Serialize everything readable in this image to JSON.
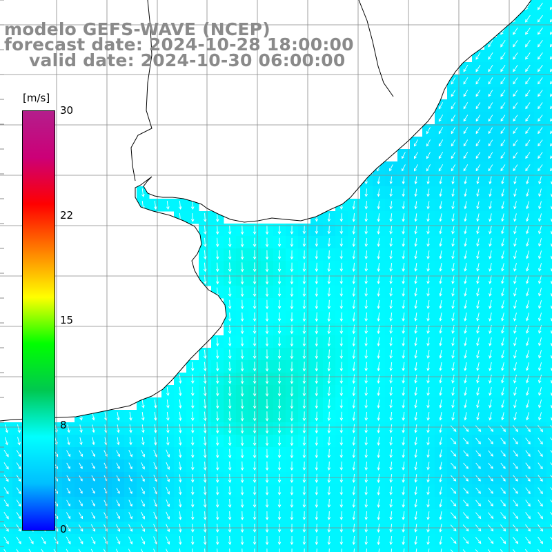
{
  "title": {
    "line1": "modelo GEFS-WAVE (NCEP)",
    "line2": "forecast date: 2024-10-28 18:00:00",
    "line3": "valid date: 2024-10-30 06:00:00"
  },
  "colorbar": {
    "unit": "[m/s]",
    "min": 0,
    "max": 30,
    "ticks": [
      "30",
      "22",
      "15",
      "8",
      "0"
    ],
    "stops": [
      "#0000ff",
      "#00bfff",
      "#00ffff",
      "#00c850",
      "#00ff00",
      "#ffff00",
      "#ff8000",
      "#ff0000",
      "#cc0077",
      "#b41e8c"
    ]
  },
  "map": {
    "field": "wind speed and direction over ocean",
    "land_color": "#ffffff",
    "grid_color": "#888888",
    "coast_color": "#000000"
  },
  "colors": {
    "title": "#8a8a8a",
    "arrows": "#ffffff"
  }
}
